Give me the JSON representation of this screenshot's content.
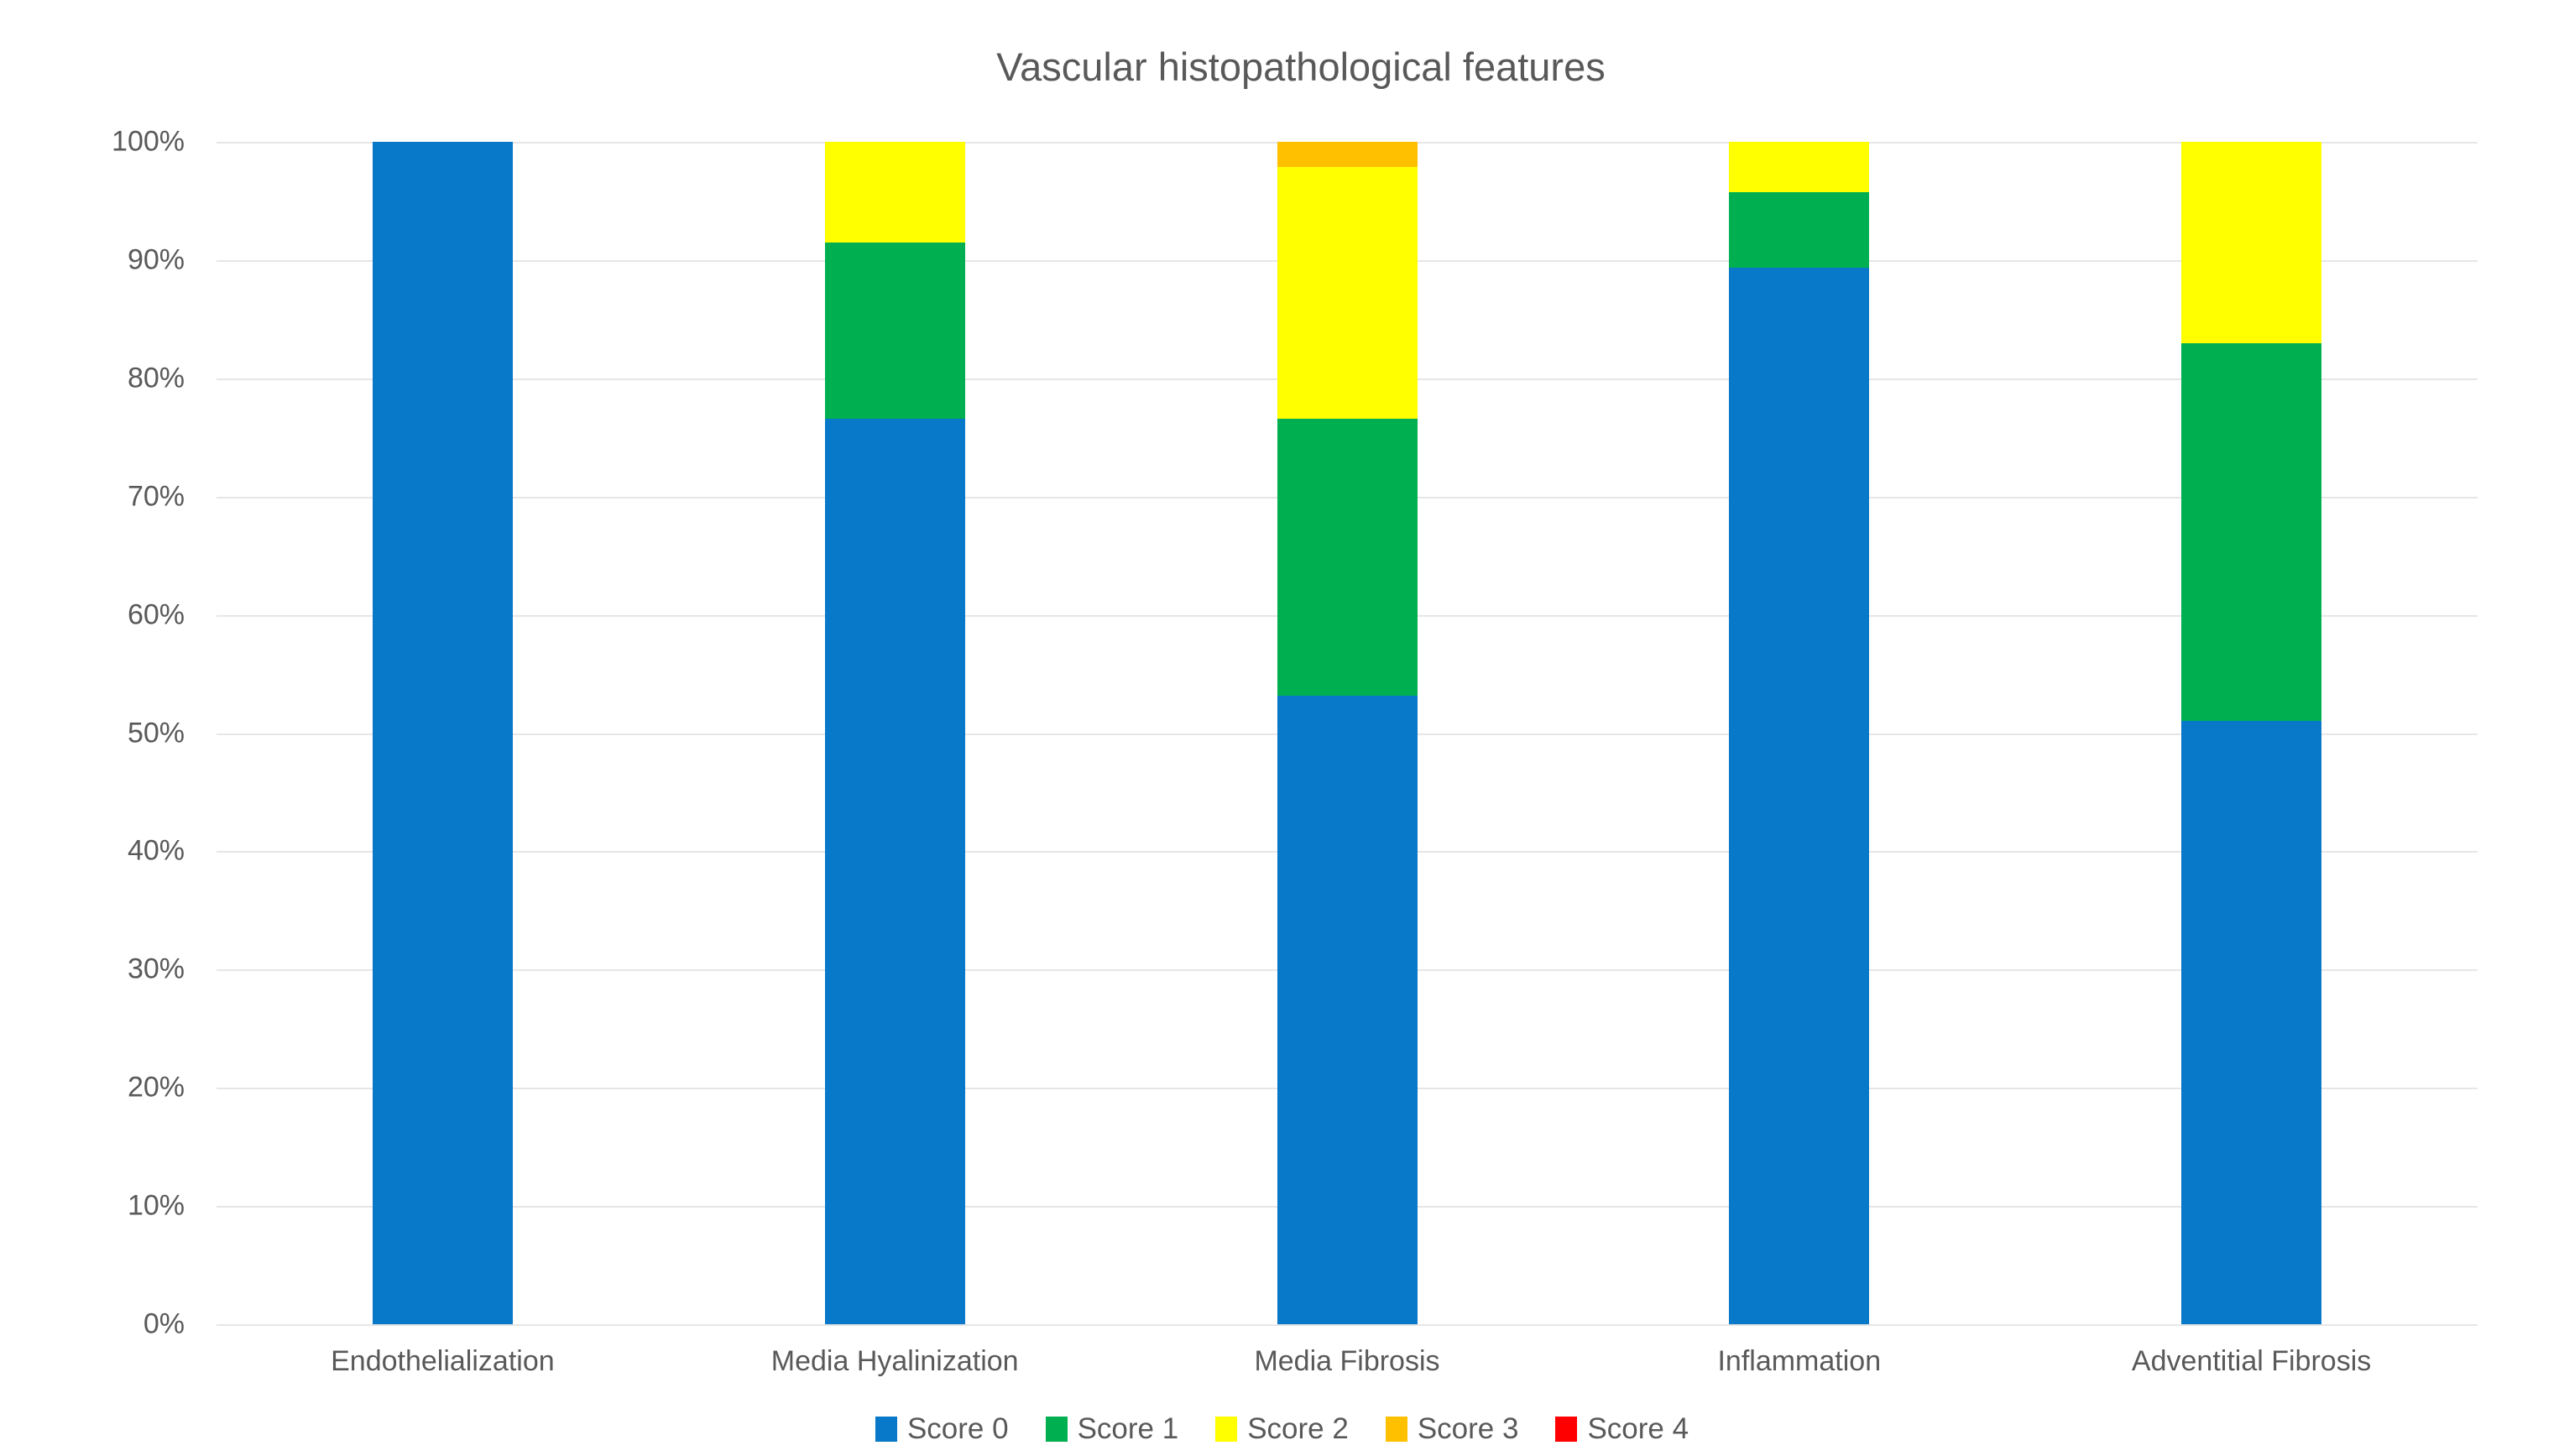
{
  "chart_data": {
    "type": "bar",
    "variant": "stacked-100-percent",
    "title": "Vascular histopathological features",
    "categories": [
      "Endothelialization",
      "Media Hyalinization",
      "Media Fibrosis",
      "Inflammation",
      "Adventitial Fibrosis"
    ],
    "series": [
      {
        "name": "Score 0",
        "color": "#0878c8",
        "values": [
          100,
          76.6,
          53.19,
          89.36,
          51.06
        ]
      },
      {
        "name": "Score 1",
        "color": "#00b050",
        "values": [
          0,
          14.89,
          23.4,
          6.38,
          31.91
        ]
      },
      {
        "name": "Score 2",
        "color": "#ffff00",
        "values": [
          0,
          8.51,
          21.28,
          4.26,
          17.03
        ]
      },
      {
        "name": "Score 3",
        "color": "#ffc000",
        "values": [
          0,
          0,
          2.13,
          0,
          0
        ]
      },
      {
        "name": "Score 4",
        "color": "#ff0000",
        "values": [
          0,
          0,
          0,
          0,
          0
        ]
      }
    ],
    "y_axis": {
      "min": 0,
      "max": 100,
      "tick_step": 10,
      "tick_labels": [
        "0%",
        "10%",
        "20%",
        "30%",
        "40%",
        "50%",
        "60%",
        "70%",
        "80%",
        "90%",
        "100%"
      ]
    },
    "x_axis": {
      "label": ""
    },
    "ylabel": "",
    "xlabel": "",
    "grid": true,
    "gridline_color": "#e6e6e6",
    "legend_position": "bottom",
    "text_color": "#595959",
    "background_color": "#ffffff"
  }
}
